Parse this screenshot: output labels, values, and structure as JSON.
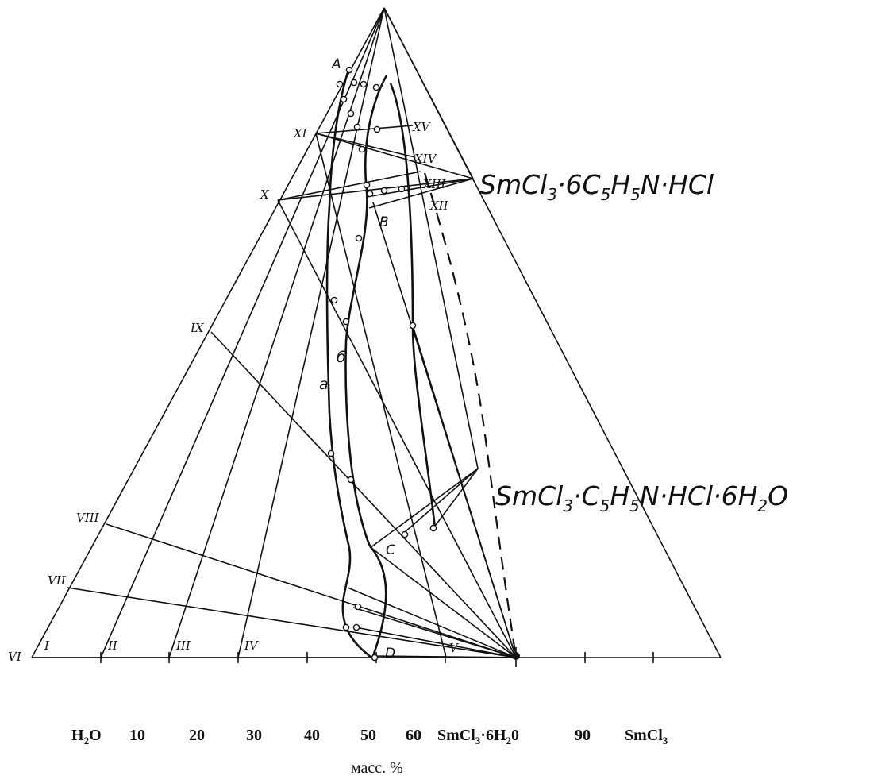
{
  "diagram": {
    "compounds": {
      "upper_prefix": "SmCl",
      "upper_sub3": "3",
      "upper_mid": "·6C",
      "upper_sub5a": "5",
      "upper_h": "H",
      "upper_sub5b": "5",
      "upper_tail": "N·HCl",
      "lower_prefix": "SmCl",
      "lower_sub3": "3",
      "lower_mid": "·C",
      "lower_sub5a": "5",
      "lower_h": "H",
      "lower_sub5b": "5",
      "lower_tail": "N·HCl·6H",
      "lower_sub2": "2",
      "lower_end": "O"
    },
    "section_labels": [
      "I",
      "II",
      "III",
      "IV",
      "V",
      "VI",
      "VII",
      "VIII",
      "IX",
      "X",
      "XI",
      "XII",
      "XIII",
      "XIV",
      "XV"
    ],
    "point_labels": [
      "A",
      "B",
      "C",
      "D"
    ],
    "curve_labels": [
      "а",
      "б"
    ],
    "x_axis": {
      "ticks": [
        {
          "main": "H",
          "sub": "2",
          "tail": "O"
        },
        {
          "main": "10"
        },
        {
          "main": "20"
        },
        {
          "main": "30"
        },
        {
          "main": "40"
        },
        {
          "main": "50"
        },
        {
          "main": "60"
        },
        {
          "main": "SmCl",
          "sub": "3",
          "tail": "·6H",
          "sub2": "2",
          "tail2": "0"
        },
        {
          "main": "90"
        },
        {
          "main": "SmCl",
          "sub": "3"
        }
      ],
      "units": "масс. %"
    }
  }
}
